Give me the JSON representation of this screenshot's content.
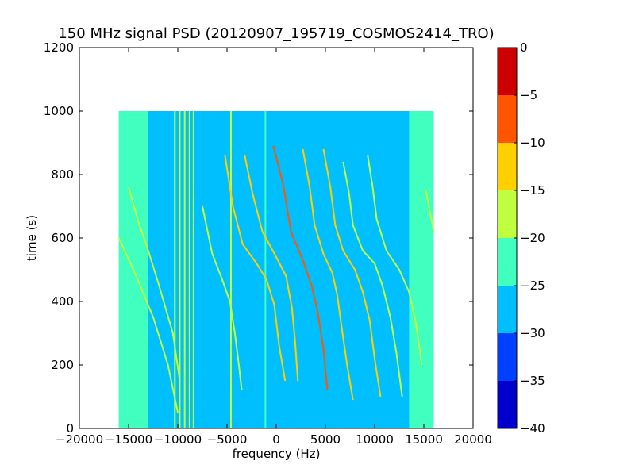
{
  "chart_data": {
    "type": "heatmap",
    "title": "150 MHz signal PSD (20120907_195719_COSMOS2414_TRO)",
    "xlabel": "frequency (Hz)",
    "ylabel": "time (s)",
    "xlim": [
      -20000,
      20000
    ],
    "ylim": [
      0,
      1200
    ],
    "data_extent": {
      "x": [
        -16000,
        16000
      ],
      "y": [
        0,
        1000
      ]
    },
    "xticks": [
      -20000,
      -15000,
      -10000,
      -5000,
      0,
      5000,
      10000,
      15000,
      20000
    ],
    "xtick_labels": [
      "−20000",
      "−15000",
      "−10000",
      "−5000",
      "0",
      "5000",
      "10000",
      "15000",
      "20000"
    ],
    "yticks": [
      0,
      200,
      400,
      600,
      800,
      1000,
      1200
    ],
    "ytick_labels": [
      "0",
      "200",
      "400",
      "600",
      "800",
      "1000",
      "1200"
    ],
    "background_level": {
      "edges": -22.5,
      "core": -27.5
    },
    "colorbar": {
      "levels": [
        -40,
        -35,
        -30,
        -25,
        -20,
        -15,
        -10,
        -5,
        0
      ],
      "tick_labels": [
        "−40",
        "−35",
        "−30",
        "−25",
        "−20",
        "−15",
        "−10",
        "−5",
        "0"
      ],
      "colors": [
        "#0000cc",
        "#0040ff",
        "#00bfff",
        "#40ffbf",
        "#bfff40",
        "#ffd000",
        "#ff5500",
        "#cc0000"
      ]
    },
    "vertical_lines": [
      {
        "x": -10300,
        "y": [
          0,
          1000
        ],
        "level": -17
      },
      {
        "x": -9800,
        "y": [
          0,
          1000
        ],
        "level": -17
      },
      {
        "x": -9300,
        "y": [
          0,
          1000
        ],
        "level": -17
      },
      {
        "x": -8800,
        "y": [
          0,
          1000
        ],
        "level": -17
      },
      {
        "x": -8400,
        "y": [
          0,
          1000
        ],
        "level": -17
      },
      {
        "x": -4600,
        "y": [
          0,
          1000
        ],
        "level": -17
      },
      {
        "x": -1100,
        "y": [
          0,
          1000
        ],
        "level": -22
      }
    ],
    "tracks": [
      {
        "points": [
          [
            -16000,
            600
          ],
          [
            -14500,
            500
          ],
          [
            -12500,
            350
          ],
          [
            -11000,
            200
          ],
          [
            -10000,
            50
          ]
        ],
        "level": -17
      },
      {
        "points": [
          [
            -15000,
            760
          ],
          [
            -14000,
            650
          ],
          [
            -13000,
            560
          ],
          [
            -12000,
            460
          ],
          [
            -10500,
            300
          ],
          [
            -9800,
            150
          ]
        ],
        "level": -17
      },
      {
        "points": [
          [
            -7500,
            700
          ],
          [
            -6500,
            550
          ],
          [
            -5500,
            470
          ],
          [
            -4700,
            400
          ],
          [
            -4200,
            300
          ],
          [
            -3800,
            200
          ],
          [
            -3500,
            120
          ]
        ],
        "level": -17
      },
      {
        "points": [
          [
            -5200,
            860
          ],
          [
            -4400,
            700
          ],
          [
            -3400,
            580
          ],
          [
            -2000,
            520
          ],
          [
            -1000,
            470
          ],
          [
            -200,
            390
          ],
          [
            300,
            260
          ],
          [
            900,
            150
          ]
        ],
        "level": -15
      },
      {
        "points": [
          [
            -3200,
            860
          ],
          [
            -2400,
            740
          ],
          [
            -1400,
            620
          ],
          [
            0,
            540
          ],
          [
            1000,
            480
          ],
          [
            1600,
            380
          ],
          [
            1900,
            280
          ],
          [
            2200,
            150
          ]
        ],
        "level": -15
      },
      {
        "points": [
          [
            -300,
            890
          ],
          [
            700,
            770
          ],
          [
            1500,
            620
          ],
          [
            2700,
            530
          ],
          [
            3600,
            450
          ],
          [
            4200,
            370
          ],
          [
            4800,
            250
          ],
          [
            5200,
            120
          ]
        ],
        "level": -10
      },
      {
        "points": [
          [
            2700,
            880
          ],
          [
            3400,
            760
          ],
          [
            3900,
            640
          ],
          [
            4800,
            550
          ],
          [
            5700,
            490
          ],
          [
            6200,
            420
          ],
          [
            6600,
            330
          ],
          [
            7200,
            200
          ],
          [
            7800,
            90
          ]
        ],
        "level": -15
      },
      {
        "points": [
          [
            4800,
            880
          ],
          [
            5500,
            760
          ],
          [
            6000,
            640
          ],
          [
            6800,
            560
          ],
          [
            8000,
            500
          ],
          [
            8800,
            430
          ],
          [
            9500,
            340
          ],
          [
            10000,
            220
          ],
          [
            10600,
            100
          ]
        ],
        "level": -15
      },
      {
        "points": [
          [
            6800,
            840
          ],
          [
            7400,
            740
          ],
          [
            7800,
            640
          ],
          [
            8800,
            560
          ],
          [
            10000,
            520
          ],
          [
            10800,
            450
          ],
          [
            11600,
            350
          ],
          [
            12200,
            240
          ],
          [
            12800,
            100
          ]
        ],
        "level": -17
      },
      {
        "points": [
          [
            9300,
            860
          ],
          [
            9800,
            760
          ],
          [
            10200,
            660
          ],
          [
            11200,
            560
          ],
          [
            12500,
            500
          ],
          [
            13500,
            430
          ],
          [
            14200,
            330
          ],
          [
            14800,
            200
          ]
        ],
        "level": -17
      },
      {
        "points": [
          [
            15200,
            750
          ],
          [
            16000,
            620
          ]
        ],
        "level": -17
      }
    ]
  }
}
